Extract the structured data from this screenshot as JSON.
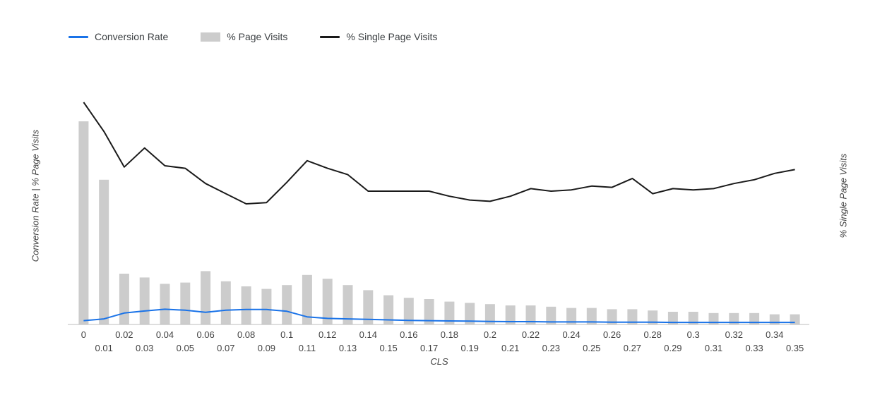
{
  "legend": {
    "items": [
      {
        "label": "Conversion Rate",
        "swatch": "line",
        "color": "#1a73e8"
      },
      {
        "label": "% Page Visits",
        "swatch": "rect",
        "color": "#cccccc"
      },
      {
        "label": "% Single Page Visits",
        "swatch": "line",
        "color": "#1a1a1a"
      }
    ]
  },
  "chart_data": {
    "type": "combo",
    "title": "",
    "xlabel": "CLS",
    "ylabel_left": "Conversion Rate | % Page Visits",
    "ylabel_right": "% Single Page Visits",
    "grid": false,
    "legend_position": "top-left",
    "y_left_range": [
      0,
      100
    ],
    "y_right_range": [
      0,
      100
    ],
    "categories": [
      "0",
      "0.01",
      "0.02",
      "0.03",
      "0.04",
      "0.05",
      "0.06",
      "0.07",
      "0.08",
      "0.09",
      "0.1",
      "0.11",
      "0.12",
      "0.13",
      "0.14",
      "0.15",
      "0.16",
      "0.17",
      "0.18",
      "0.19",
      "0.2",
      "0.21",
      "0.22",
      "0.23",
      "0.24",
      "0.25",
      "0.26",
      "0.27",
      "0.28",
      "0.29",
      "0.3",
      "0.31",
      "0.32",
      "0.33",
      "0.34",
      "0.35"
    ],
    "series": [
      {
        "name": "% Page Visits",
        "type": "bar",
        "axis": "left",
        "color": "#cccccc",
        "values": [
          80,
          57,
          20,
          18.5,
          16,
          16.5,
          21,
          17,
          15,
          14,
          15.5,
          19.5,
          18,
          15.5,
          13.5,
          11.5,
          10.5,
          10,
          9,
          8.5,
          8,
          7.5,
          7.5,
          7,
          6.5,
          6.5,
          6,
          6,
          5.5,
          5,
          5,
          4.5,
          4.5,
          4.5,
          4,
          4
        ]
      },
      {
        "name": "Conversion Rate",
        "type": "line",
        "axis": "left",
        "color": "#1a73e8",
        "values": [
          1.5,
          2.2,
          4.5,
          5.3,
          6,
          5.6,
          4.8,
          5.6,
          5.9,
          5.9,
          5.2,
          3,
          2.4,
          2.2,
          2,
          1.8,
          1.6,
          1.5,
          1.4,
          1.3,
          1.2,
          1.1,
          1.1,
          1,
          1,
          1,
          0.9,
          0.9,
          0.9,
          0.8,
          0.8,
          0.8,
          0.8,
          0.8,
          0.8,
          0.8
        ]
      },
      {
        "name": "% Single Page Visits",
        "type": "line",
        "axis": "right",
        "color": "#1a1a1a",
        "values": [
          87.5,
          76,
          62,
          69.5,
          62.5,
          61.5,
          55.5,
          51.5,
          47.5,
          48,
          56,
          64.5,
          61.5,
          59,
          52.5,
          52.5,
          52.5,
          52.5,
          50.5,
          49,
          48.5,
          50.5,
          53.5,
          52.5,
          53,
          54.5,
          54,
          57.5,
          51.5,
          53.5,
          53,
          53.5,
          55.5,
          57,
          59.5,
          61
        ]
      }
    ],
    "axis_baseline_color": "#bdbdbd",
    "tick_label_color": "#424242"
  }
}
